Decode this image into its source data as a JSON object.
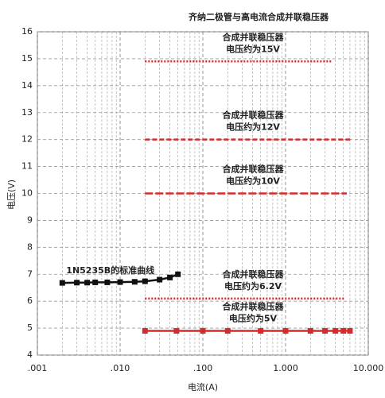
{
  "chart_data": {
    "type": "line",
    "title": "齐纳二极管与高电流合成并联稳压器",
    "xlabel": "电流(A)",
    "ylabel": "电压(V)",
    "xscale": "log",
    "grid": true,
    "xlim": [
      0.001,
      10
    ],
    "ylim": [
      4,
      16
    ],
    "xticks": [
      {
        "value": 0.001,
        "label": ".001"
      },
      {
        "value": 0.01,
        "label": ".010"
      },
      {
        "value": 0.1,
        "label": ".100"
      },
      {
        "value": 1,
        "label": "1.000"
      },
      {
        "value": 10,
        "label": "10.000"
      }
    ],
    "yticks": [
      4,
      5,
      6,
      7,
      8,
      9,
      10,
      11,
      12,
      13,
      14,
      15,
      16
    ],
    "series": [
      {
        "name": "1N5235B的标准曲线",
        "color": "#111111",
        "style": "solid",
        "marker": "square",
        "x": [
          0.002,
          0.003,
          0.004,
          0.005,
          0.007,
          0.01,
          0.015,
          0.02,
          0.03,
          0.04,
          0.05
        ],
        "values": [
          6.68,
          6.69,
          6.69,
          6.7,
          6.7,
          6.71,
          6.72,
          6.74,
          6.8,
          6.88,
          7.0
        ]
      },
      {
        "label_lines": [
          "合成并联稳压器",
          "电压约为15V"
        ],
        "color": "#d62b2b",
        "style": "dotted",
        "x": [
          0.02,
          3.6
        ],
        "values": [
          14.9,
          14.9
        ]
      },
      {
        "label_lines": [
          "合成并联稳压器",
          "电压约为12V"
        ],
        "color": "#d62b2b",
        "style": "dashed",
        "x": [
          0.02,
          6.2
        ],
        "values": [
          12,
          12
        ]
      },
      {
        "label_lines": [
          "合成并联稳压器",
          "电压约为10V"
        ],
        "color": "#d62b2b",
        "style": "longdash",
        "x": [
          0.02,
          5.5
        ],
        "values": [
          10,
          10
        ]
      },
      {
        "label_lines": [
          "合成并联稳压器",
          "电压约为6.2V"
        ],
        "color": "#d62b2b",
        "style": "dotted",
        "x": [
          0.02,
          5.3
        ],
        "values": [
          6.1,
          6.1
        ]
      },
      {
        "label_lines": [
          "合成并联稳压器",
          "电压约为5V"
        ],
        "color": "#d62b2b",
        "style": "solid",
        "marker": "square",
        "x": [
          0.02,
          0.048,
          0.1,
          0.2,
          0.5,
          1,
          2,
          3,
          4,
          5,
          6
        ],
        "values": [
          4.9,
          4.9,
          4.9,
          4.9,
          4.9,
          4.9,
          4.9,
          4.9,
          4.9,
          4.9,
          4.9
        ]
      }
    ]
  }
}
